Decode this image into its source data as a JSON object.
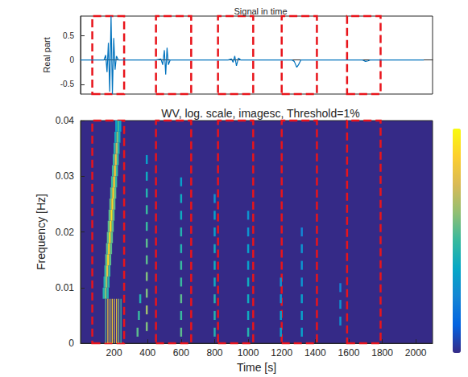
{
  "chart_data": [
    {
      "type": "line",
      "title": "Signal in time",
      "ylabel": "Real part",
      "x": [
        0,
        100,
        140,
        150,
        158,
        166,
        174,
        182,
        190,
        198,
        206,
        214,
        225,
        300,
        450,
        480,
        490,
        500,
        508,
        516,
        524,
        535,
        600,
        880,
        900,
        910,
        920,
        930,
        942,
        955,
        1000,
        1260,
        1275,
        1290,
        1300,
        1315,
        1400,
        1680,
        1700,
        1715,
        1730,
        2048
      ],
      "values": [
        0,
        0,
        0,
        0.1,
        -0.25,
        0.35,
        -0.65,
        0.9,
        -0.7,
        0.45,
        -0.2,
        0.08,
        0,
        0,
        0,
        0.02,
        -0.1,
        0.2,
        -0.3,
        0.25,
        -0.1,
        0,
        0,
        0,
        0.02,
        -0.05,
        0.08,
        -0.12,
        0.04,
        0,
        0,
        0,
        -0.03,
        -0.15,
        -0.1,
        0,
        0,
        0,
        -0.03,
        -0.02,
        0,
        0
      ],
      "color": "#0072bd",
      "xlim": [
        0,
        2100
      ],
      "ylim": [
        -0.7,
        0.9
      ],
      "yticks": [
        -0.5,
        0,
        0.5
      ],
      "tick_labels": "y",
      "grid": false,
      "windows": [
        [
          70,
          260
        ],
        [
          450,
          660
        ],
        [
          820,
          1030
        ],
        [
          1200,
          1410
        ],
        [
          1590,
          1790
        ]
      ]
    },
    {
      "type": "heatmap",
      "title": "WV, log. scale, imagesc, Threshold=1%",
      "xlabel": "Time [s]",
      "ylabel": "Frequency [Hz]",
      "xlim": [
        0,
        2100
      ],
      "ylim": [
        0,
        0.04
      ],
      "xticks": [
        200,
        400,
        600,
        800,
        1000,
        1200,
        1400,
        1600,
        1800,
        2000
      ],
      "yticks": [
        0,
        0.01,
        0.02,
        0.03,
        0.04
      ],
      "grid": false,
      "colorbar_range": [
        0,
        1
      ],
      "windows": [
        [
          70,
          260
        ],
        [
          450,
          660
        ],
        [
          820,
          1030
        ],
        [
          1200,
          1410
        ],
        [
          1590,
          1790
        ]
      ],
      "cell_groups": [
        {
          "size": [
            12,
            0.002
          ],
          "cells": [
            [
              138,
              0.009,
              0.45
            ],
            [
              150,
              0.009,
              0.6
            ],
            [
              162,
              0.009,
              0.45
            ],
            [
              143,
              0.011,
              0.45
            ],
            [
              155,
              0.011,
              0.65
            ],
            [
              167,
              0.011,
              0.45
            ],
            [
              148,
              0.013,
              0.5
            ],
            [
              160,
              0.013,
              0.8
            ],
            [
              172,
              0.013,
              0.5
            ],
            [
              153,
              0.015,
              0.55
            ],
            [
              165,
              0.015,
              0.9
            ],
            [
              177,
              0.015,
              0.55
            ],
            [
              158,
              0.017,
              0.55
            ],
            [
              170,
              0.017,
              0.9
            ],
            [
              182,
              0.017,
              0.55
            ],
            [
              163,
              0.019,
              0.55
            ],
            [
              175,
              0.019,
              0.92
            ],
            [
              187,
              0.019,
              0.55
            ],
            [
              168,
              0.021,
              0.55
            ],
            [
              180,
              0.021,
              0.92
            ],
            [
              192,
              0.021,
              0.55
            ],
            [
              173,
              0.023,
              0.55
            ],
            [
              185,
              0.023,
              0.92
            ],
            [
              197,
              0.023,
              0.55
            ],
            [
              178,
              0.025,
              0.55
            ],
            [
              190,
              0.025,
              0.9
            ],
            [
              202,
              0.025,
              0.55
            ],
            [
              183,
              0.027,
              0.55
            ],
            [
              195,
              0.027,
              0.9
            ],
            [
              207,
              0.027,
              0.55
            ],
            [
              188,
              0.029,
              0.5
            ],
            [
              200,
              0.029,
              0.88
            ],
            [
              212,
              0.029,
              0.5
            ],
            [
              193,
              0.031,
              0.5
            ],
            [
              205,
              0.031,
              0.85
            ],
            [
              217,
              0.031,
              0.5
            ],
            [
              198,
              0.033,
              0.5
            ],
            [
              210,
              0.033,
              0.8
            ],
            [
              222,
              0.033,
              0.5
            ],
            [
              203,
              0.035,
              0.45
            ],
            [
              215,
              0.035,
              0.7
            ],
            [
              227,
              0.035,
              0.45
            ],
            [
              208,
              0.037,
              0.4
            ],
            [
              220,
              0.037,
              0.6
            ],
            [
              232,
              0.037,
              0.4
            ],
            [
              213,
              0.039,
              0.35
            ],
            [
              225,
              0.039,
              0.5
            ],
            [
              237,
              0.039,
              0.35
            ]
          ]
        },
        {
          "size": [
            6,
            0.008
          ],
          "cells": [
            [
              150,
              0.004,
              0.55
            ],
            [
              163,
              0.004,
              0.85
            ],
            [
              176,
              0.004,
              0.7
            ],
            [
              189,
              0.004,
              0.9
            ],
            [
              202,
              0.004,
              0.75
            ],
            [
              215,
              0.004,
              0.85
            ],
            [
              228,
              0.004,
              0.6
            ],
            [
              241,
              0.004,
              0.5
            ]
          ]
        },
        {
          "size": [
            12,
            0.0016
          ],
          "cells": [
            [
              340,
              0.002,
              0.55
            ],
            [
              348,
              0.005,
              0.5
            ],
            [
              356,
              0.008,
              0.45
            ],
            [
              395,
              0.003,
              0.6
            ],
            [
              395,
              0.006,
              0.65
            ],
            [
              395,
              0.009,
              0.6
            ],
            [
              395,
              0.012,
              0.6
            ],
            [
              395,
              0.015,
              0.55
            ],
            [
              395,
              0.018,
              0.55
            ],
            [
              395,
              0.021,
              0.5
            ],
            [
              395,
              0.024,
              0.5
            ],
            [
              395,
              0.027,
              0.45
            ],
            [
              395,
              0.03,
              0.4
            ],
            [
              395,
              0.033,
              0.35
            ],
            [
              600,
              0.002,
              0.55
            ],
            [
              600,
              0.005,
              0.5
            ],
            [
              600,
              0.008,
              0.55
            ],
            [
              600,
              0.011,
              0.5
            ],
            [
              600,
              0.014,
              0.5
            ],
            [
              600,
              0.017,
              0.45
            ],
            [
              600,
              0.02,
              0.45
            ],
            [
              600,
              0.023,
              0.4
            ],
            [
              600,
              0.026,
              0.4
            ],
            [
              600,
              0.029,
              0.35
            ],
            [
              800,
              0.002,
              0.45
            ],
            [
              800,
              0.005,
              0.45
            ],
            [
              800,
              0.008,
              0.45
            ],
            [
              800,
              0.011,
              0.4
            ],
            [
              800,
              0.014,
              0.4
            ],
            [
              800,
              0.017,
              0.4
            ],
            [
              800,
              0.02,
              0.35
            ],
            [
              800,
              0.023,
              0.35
            ],
            [
              800,
              0.026,
              0.3
            ],
            [
              1000,
              0.002,
              0.45
            ],
            [
              1000,
              0.005,
              0.4
            ],
            [
              1000,
              0.008,
              0.4
            ],
            [
              1000,
              0.011,
              0.4
            ],
            [
              1000,
              0.014,
              0.35
            ],
            [
              1000,
              0.017,
              0.35
            ],
            [
              1000,
              0.02,
              0.3
            ],
            [
              1000,
              0.023,
              0.3
            ],
            [
              1195,
              0.002,
              0.35
            ],
            [
              1195,
              0.005,
              0.35
            ],
            [
              1195,
              0.008,
              0.3
            ],
            [
              1195,
              0.011,
              0.3
            ],
            [
              1320,
              0.002,
              0.35
            ],
            [
              1320,
              0.005,
              0.35
            ],
            [
              1320,
              0.008,
              0.35
            ],
            [
              1320,
              0.011,
              0.3
            ],
            [
              1320,
              0.014,
              0.3
            ],
            [
              1320,
              0.017,
              0.3
            ],
            [
              1320,
              0.02,
              0.25
            ],
            [
              1550,
              0.004,
              0.3
            ],
            [
              1550,
              0.007,
              0.3
            ],
            [
              1550,
              0.01,
              0.25
            ]
          ]
        }
      ]
    }
  ]
}
